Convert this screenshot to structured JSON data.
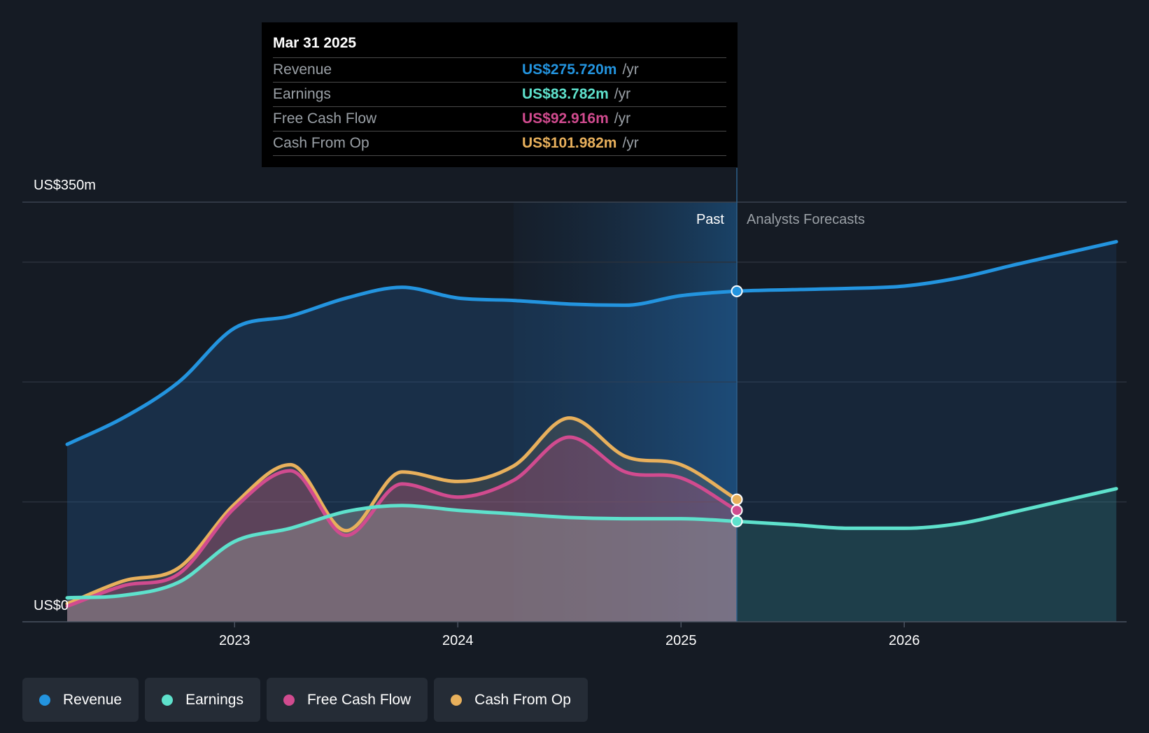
{
  "chart_data": {
    "type": "area",
    "y_axis": {
      "top_label": "US$350m",
      "bottom_label": "US$0",
      "ylim": [
        0,
        350
      ]
    },
    "x_ticks": [
      "2023",
      "2024",
      "2025",
      "2026"
    ],
    "divider": {
      "past_label": "Past",
      "forecast_label": "Analysts Forecasts",
      "date": 2025.25
    },
    "series": [
      {
        "key": "revenue",
        "name": "Revenue",
        "color": "#2394df",
        "points": [
          [
            2022.25,
            148
          ],
          [
            2022.5,
            170
          ],
          [
            2022.75,
            200
          ],
          [
            2023.0,
            245
          ],
          [
            2023.25,
            255
          ],
          [
            2023.5,
            270
          ],
          [
            2023.75,
            279
          ],
          [
            2024.0,
            270
          ],
          [
            2024.25,
            268
          ],
          [
            2024.5,
            265
          ],
          [
            2024.75,
            264
          ],
          [
            2025.0,
            272
          ],
          [
            2025.25,
            275.72
          ],
          [
            2025.5,
            277
          ],
          [
            2025.75,
            278
          ],
          [
            2026.0,
            280
          ],
          [
            2026.25,
            287
          ],
          [
            2026.5,
            298
          ],
          [
            2026.95,
            317
          ]
        ]
      },
      {
        "key": "earnings",
        "name": "Earnings",
        "color": "#5ee1cc",
        "points": [
          [
            2022.25,
            20
          ],
          [
            2022.5,
            22
          ],
          [
            2022.75,
            33
          ],
          [
            2023.0,
            67
          ],
          [
            2023.25,
            78
          ],
          [
            2023.5,
            92
          ],
          [
            2023.75,
            97
          ],
          [
            2024.0,
            93
          ],
          [
            2024.25,
            90
          ],
          [
            2024.5,
            87
          ],
          [
            2024.75,
            86
          ],
          [
            2025.0,
            86
          ],
          [
            2025.25,
            83.78
          ],
          [
            2025.5,
            81
          ],
          [
            2025.75,
            78
          ],
          [
            2026.0,
            78
          ],
          [
            2026.25,
            82
          ],
          [
            2026.5,
            92
          ],
          [
            2026.95,
            111
          ]
        ]
      },
      {
        "key": "free_cash_flow",
        "name": "Free Cash Flow",
        "color": "#d14b8f",
        "points": [
          [
            2022.25,
            13
          ],
          [
            2022.5,
            30
          ],
          [
            2022.75,
            40
          ],
          [
            2023.0,
            95
          ],
          [
            2023.25,
            126
          ],
          [
            2023.5,
            72
          ],
          [
            2023.75,
            115
          ],
          [
            2024.0,
            104
          ],
          [
            2024.25,
            118
          ],
          [
            2024.5,
            154
          ],
          [
            2024.75,
            125
          ],
          [
            2025.0,
            120
          ],
          [
            2025.25,
            92.916
          ]
        ]
      },
      {
        "key": "cash_from_op",
        "name": "Cash From Op",
        "color": "#e8b05c",
        "points": [
          [
            2022.25,
            15
          ],
          [
            2022.5,
            34
          ],
          [
            2022.75,
            45
          ],
          [
            2023.0,
            98
          ],
          [
            2023.25,
            131
          ],
          [
            2023.5,
            76
          ],
          [
            2023.75,
            125
          ],
          [
            2024.0,
            117
          ],
          [
            2024.25,
            130
          ],
          [
            2024.5,
            170
          ],
          [
            2024.75,
            138
          ],
          [
            2025.0,
            131
          ],
          [
            2025.25,
            101.982
          ]
        ]
      }
    ]
  },
  "tooltip": {
    "date": "Mar 31 2025",
    "rows": [
      {
        "label": "Revenue",
        "value": "US$275.720m",
        "unit": "/yr",
        "color": "#2394df"
      },
      {
        "label": "Earnings",
        "value": "US$83.782m",
        "unit": "/yr",
        "color": "#5ee1cc"
      },
      {
        "label": "Free Cash Flow",
        "value": "US$92.916m",
        "unit": "/yr",
        "color": "#d14b8f"
      },
      {
        "label": "Cash From Op",
        "value": "US$101.982m",
        "unit": "/yr",
        "color": "#e8b05c"
      }
    ]
  },
  "legend": [
    {
      "label": "Revenue",
      "color": "#2394df"
    },
    {
      "label": "Earnings",
      "color": "#5ee1cc"
    },
    {
      "label": "Free Cash Flow",
      "color": "#d14b8f"
    },
    {
      "label": "Cash From Op",
      "color": "#e8b05c"
    }
  ]
}
